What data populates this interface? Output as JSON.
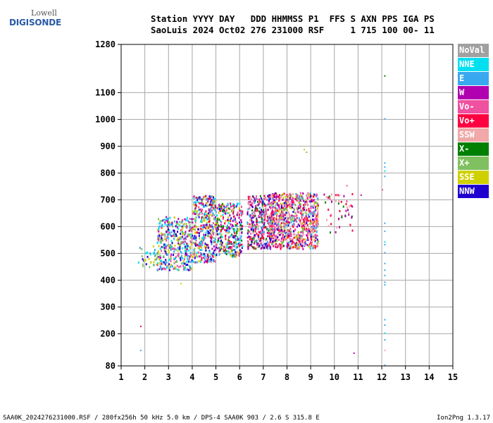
{
  "logo": {
    "top": "Lowell",
    "bottom": "DIGISONDE"
  },
  "header": {
    "line1": "Station YYYY DAY   DDD HHMMSS P1  FFS S AXN PPS IGA PS",
    "line2": "SaoLuis 2024 Oct02 276 231000 RSF     1 715 100 00- 11"
  },
  "legend": [
    {
      "label": "NoVal",
      "color": "#a0a0a0"
    },
    {
      "label": "NNE",
      "color": "#00e0f0"
    },
    {
      "label": "E",
      "color": "#38a8f0"
    },
    {
      "label": "W",
      "color": "#b000b0"
    },
    {
      "label": "Vo-",
      "color": "#f050a0"
    },
    {
      "label": "Vo+",
      "color": "#ff0040"
    },
    {
      "label": "SSW",
      "color": "#f0a8a8"
    },
    {
      "label": "X-",
      "color": "#008000"
    },
    {
      "label": "X+",
      "color": "#80c060"
    },
    {
      "label": "SSE",
      "color": "#d0d000"
    },
    {
      "label": "NNW",
      "color": "#2000d0"
    }
  ],
  "footer": {
    "left": "SAA0K_2024276231000.RSF / 280fx256h 50 kHz 5.0 km / DPS-4 SAA0K 903 / 2.6 S 315.8 E",
    "right": "Ion2Png 1.3.17"
  },
  "chart_data": {
    "type": "scatter",
    "xlim": [
      1,
      15
    ],
    "ylim": [
      80,
      1280
    ],
    "x_ticks": [
      1,
      2,
      3,
      4,
      5,
      6,
      7,
      8,
      9,
      10,
      11,
      12,
      13,
      14,
      15
    ],
    "y_ticks": [
      80,
      200,
      300,
      400,
      500,
      600,
      700,
      800,
      900,
      1000,
      1100,
      1280
    ],
    "grid": true,
    "legend_position": "right",
    "clusters": [
      {
        "x": [
          1.7,
          2.5
        ],
        "y": [
          445,
          530
        ],
        "n": 35,
        "colors": [
          "E",
          "NNE",
          "SSE",
          "X+",
          "NNW"
        ]
      },
      {
        "x": [
          2.5,
          4.0
        ],
        "y": [
          440,
          640
        ],
        "n": 420,
        "colors": [
          "E",
          "NNE",
          "SSE",
          "X+",
          "NNW",
          "W",
          "Vo-"
        ]
      },
      {
        "x": [
          4.0,
          5.0
        ],
        "y": [
          470,
          720
        ],
        "n": 420,
        "colors": [
          "E",
          "NNE",
          "SSE",
          "X+",
          "NNW",
          "W",
          "Vo-",
          "Vo+"
        ]
      },
      {
        "x": [
          5.0,
          6.1
        ],
        "y": [
          490,
          690
        ],
        "n": 330,
        "colors": [
          "E",
          "NNE",
          "SSE",
          "NNW",
          "W",
          "Vo-",
          "Vo+",
          "X-"
        ]
      },
      {
        "x": [
          6.3,
          7.2
        ],
        "y": [
          520,
          720
        ],
        "n": 320,
        "colors": [
          "Vo-",
          "Vo+",
          "NNW",
          "W",
          "SSW",
          "E",
          "X-"
        ]
      },
      {
        "x": [
          7.2,
          9.3
        ],
        "y": [
          520,
          730
        ],
        "n": 900,
        "colors": [
          "Vo-",
          "Vo+",
          "SSW",
          "Vo-",
          "Vo+",
          "NNW",
          "W",
          "E",
          "X+",
          "SSE"
        ]
      },
      {
        "x": [
          9.5,
          11.0
        ],
        "y": [
          580,
          730
        ],
        "n": 50,
        "colors": [
          "Vo-",
          "Vo+",
          "SSW",
          "W",
          "X-"
        ]
      }
    ],
    "points": [
      {
        "x": 12.1,
        "y": 1165,
        "c": "X-"
      },
      {
        "x": 12.1,
        "y": 1005,
        "c": "E"
      },
      {
        "x": 12.1,
        "y": 840,
        "c": "E"
      },
      {
        "x": 12.1,
        "y": 825,
        "c": "E"
      },
      {
        "x": 12.1,
        "y": 810,
        "c": "NNE"
      },
      {
        "x": 12.1,
        "y": 790,
        "c": "E"
      },
      {
        "x": 12.1,
        "y": 615,
        "c": "E"
      },
      {
        "x": 12.1,
        "y": 585,
        "c": "E"
      },
      {
        "x": 12.1,
        "y": 545,
        "c": "NNE"
      },
      {
        "x": 12.1,
        "y": 535,
        "c": "E"
      },
      {
        "x": 12.1,
        "y": 505,
        "c": "E"
      },
      {
        "x": 12.1,
        "y": 465,
        "c": "E"
      },
      {
        "x": 12.1,
        "y": 440,
        "c": "E"
      },
      {
        "x": 12.1,
        "y": 420,
        "c": "E"
      },
      {
        "x": 12.1,
        "y": 395,
        "c": "E"
      },
      {
        "x": 12.1,
        "y": 385,
        "c": "E"
      },
      {
        "x": 12.1,
        "y": 255,
        "c": "E"
      },
      {
        "x": 12.1,
        "y": 235,
        "c": "E"
      },
      {
        "x": 12.1,
        "y": 205,
        "c": "NNE"
      },
      {
        "x": 12.1,
        "y": 180,
        "c": "E"
      },
      {
        "x": 12.1,
        "y": 140,
        "c": "SSW"
      },
      {
        "x": 12.1,
        "y": 85,
        "c": "E"
      },
      {
        "x": 1.8,
        "y": 230,
        "c": "Vo+"
      },
      {
        "x": 1.8,
        "y": 140,
        "c": "E"
      },
      {
        "x": 10.8,
        "y": 130,
        "c": "W"
      },
      {
        "x": 8.7,
        "y": 890,
        "c": "SSE"
      },
      {
        "x": 8.8,
        "y": 880,
        "c": "X+"
      },
      {
        "x": 3.5,
        "y": 390,
        "c": "SSE"
      },
      {
        "x": 10.5,
        "y": 755,
        "c": "Vo-"
      },
      {
        "x": 11.1,
        "y": 720,
        "c": "W"
      },
      {
        "x": 12.0,
        "y": 740,
        "c": "Vo-"
      }
    ]
  }
}
